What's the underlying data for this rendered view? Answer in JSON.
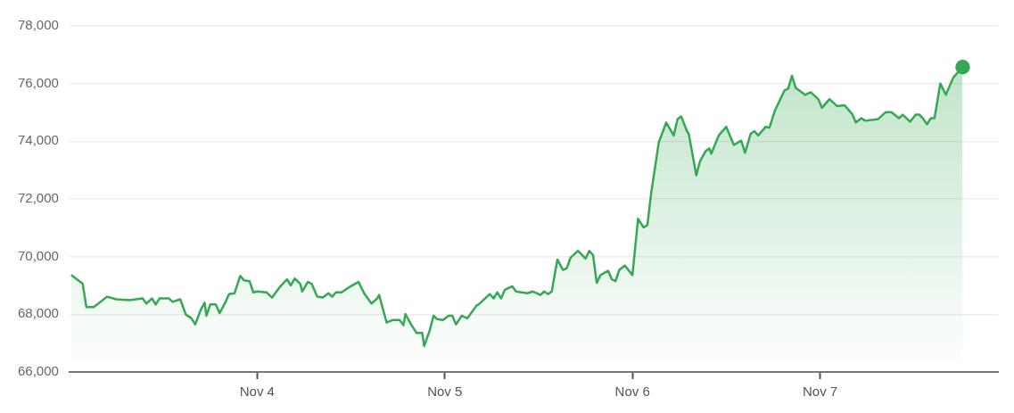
{
  "chart_data": {
    "type": "area",
    "x": [
      "--11-03T00:14",
      "--11-03T01:41",
      "--11-03T02:10",
      "--11-03T03:07",
      "--11-03T04:48",
      "--11-03T06:00",
      "--11-03T07:41",
      "--11-03T09:22",
      "--11-03T09:50",
      "--11-03T10:34",
      "--11-03T11:02",
      "--11-03T11:31",
      "--11-03T12:43",
      "--11-03T13:12",
      "--11-03T14:10",
      "--11-03T14:53",
      "--11-03T15:36",
      "--11-03T16:05",
      "--11-03T16:48",
      "--11-03T17:17",
      "--11-03T17:31",
      "--11-03T18:00",
      "--11-03T18:43",
      "--11-03T19:12",
      "--11-03T19:55",
      "--11-03T20:24",
      "--11-03T21:07",
      "--11-03T21:50",
      "--11-03T22:19",
      "--11-03T23:02",
      "--11-03T23:31",
      "--11-04T00:00",
      "--11-04T01:12",
      "--11-04T01:55",
      "--11-04T02:53",
      "--11-04T03:50",
      "--11-04T04:19",
      "--11-04T04:48",
      "--11-04T05:31",
      "--11-04T05:46",
      "--11-04T06:29",
      "--11-04T06:58",
      "--11-04T07:41",
      "--11-04T08:24",
      "--11-04T09:07",
      "--11-04T09:36",
      "--11-04T10:05",
      "--11-04T10:48",
      "--11-04T11:46",
      "--11-04T12:58",
      "--11-04T13:41",
      "--11-04T14:38",
      "--11-04T15:22",
      "--11-04T15:36",
      "--11-04T16:34",
      "--11-04T17:17",
      "--11-04T18:14",
      "--11-04T18:43",
      "--11-04T18:58",
      "--11-04T19:41",
      "--11-04T20:24",
      "--11-04T21:07",
      "--11-04T21:22",
      "--11-04T22:05",
      "--11-04T22:34",
      "--11-04T23:02",
      "--11-04T23:46",
      "--11-05T00:29",
      "--11-05T00:58",
      "--11-05T01:26",
      "--11-05T02:10",
      "--11-05T02:53",
      "--11-05T04:05",
      "--11-05T04:19",
      "--11-05T05:46",
      "--11-05T06:14",
      "--11-05T06:43",
      "--11-05T07:12",
      "--11-05T07:41",
      "--11-05T08:38",
      "--11-05T09:07",
      "--11-05T10:34",
      "--11-05T11:17",
      "--11-05T12:14",
      "--11-05T12:43",
      "--11-05T13:12",
      "--11-05T13:41",
      "--11-05T14:24",
      "--11-05T15:07",
      "--11-05T15:36",
      "--11-05T16:05",
      "--11-05T17:02",
      "--11-05T18:00",
      "--11-05T18:29",
      "--11-05T18:58",
      "--11-05T19:26",
      "--11-05T19:55",
      "--11-05T20:53",
      "--11-05T21:22",
      "--11-05T21:50",
      "--11-05T22:19",
      "--11-05T23:02",
      "--11-06T00:00",
      "--11-06T00:43",
      "--11-06T01:26",
      "--11-06T01:55",
      "--11-06T02:24",
      "--11-06T03:22",
      "--11-06T04:19",
      "--11-06T05:17",
      "--11-06T05:46",
      "--11-06T06:14",
      "--11-06T06:58",
      "--11-06T07:12",
      "--11-06T08:10",
      "--11-06T08:38",
      "--11-06T09:22",
      "--11-06T09:50",
      "--11-06T10:05",
      "--11-06T11:02",
      "--11-06T12:00",
      "--11-06T12:58",
      "--11-06T13:55",
      "--11-06T14:24",
      "--11-06T15:07",
      "--11-06T15:36",
      "--11-06T16:05",
      "--11-06T17:02",
      "--11-06T17:31",
      "--11-06T18:14",
      "--11-06T19:26",
      "--11-06T19:55",
      "--11-06T20:24",
      "--11-06T20:53",
      "--11-06T22:05",
      "--11-06T22:48",
      "--11-06T23:46",
      "--11-07T00:14",
      "--11-07T01:12",
      "--11-07T02:10",
      "--11-07T03:07",
      "--11-07T04:05",
      "--11-07T04:34",
      "--11-07T05:17",
      "--11-07T05:46",
      "--11-07T07:26",
      "--11-07T08:24",
      "--11-07T09:07",
      "--11-07T10:05",
      "--11-07T10:34",
      "--11-07T11:31",
      "--11-07T12:14",
      "--11-07T12:43",
      "--11-07T13:12",
      "--11-07T13:41",
      "--11-07T14:10",
      "--11-07T14:38",
      "--11-07T15:22",
      "--11-07T16:05",
      "--11-07T17:02",
      "--11-07T18:14"
    ],
    "series": [
      {
        "color": "#34a853",
        "values": [
          69360,
          69060,
          68250,
          68250,
          68610,
          68520,
          68490,
          68550,
          68370,
          68550,
          68340,
          68550,
          68550,
          68430,
          68520,
          67990,
          67860,
          67650,
          68160,
          68400,
          67950,
          68340,
          68340,
          68040,
          68400,
          68700,
          68730,
          69330,
          69180,
          69150,
          68760,
          68790,
          68760,
          68580,
          68940,
          69210,
          69000,
          69240,
          69060,
          68790,
          69120,
          69060,
          68610,
          68580,
          68730,
          68610,
          68760,
          68760,
          68940,
          69120,
          68730,
          68370,
          68550,
          68670,
          67710,
          67800,
          67800,
          67620,
          68010,
          67650,
          67350,
          67350,
          66900,
          67450,
          67950,
          67830,
          67800,
          67950,
          67950,
          67650,
          67950,
          67860,
          68310,
          68340,
          68700,
          68550,
          68760,
          68550,
          68850,
          68970,
          68790,
          68730,
          68790,
          68670,
          68790,
          68700,
          68790,
          69900,
          69540,
          69600,
          69960,
          70200,
          69930,
          70200,
          70050,
          69090,
          69360,
          69510,
          69210,
          69150,
          69540,
          69690,
          69360,
          71310,
          71010,
          71100,
          72210,
          73960,
          74650,
          74200,
          74770,
          74860,
          74350,
          74260,
          72820,
          73300,
          73660,
          73750,
          73570,
          74200,
          74500,
          73870,
          74020,
          73600,
          74260,
          74350,
          74200,
          74500,
          74470,
          75070,
          75760,
          75820,
          76270,
          75850,
          75610,
          75700,
          75460,
          75160,
          75460,
          75220,
          75250,
          74950,
          74650,
          74800,
          74710,
          74770,
          75010,
          75010,
          74800,
          74920,
          74680,
          74920,
          74920,
          74770,
          74590,
          74800,
          74800,
          76000,
          75610,
          76210,
          76570
        ]
      },
      {
        "type": "scatter",
        "color": "#34a853",
        "x": [
          "--11-07T18:14"
        ],
        "values": [
          76570
        ],
        "marker": "circle"
      }
    ],
    "xlim": [
      "--11-03T00:00",
      "--11-07T22:48"
    ],
    "xticks": [
      {
        "value": "--11-04",
        "label": "Nov 4"
      },
      {
        "value": "--11-05",
        "label": "Nov 5"
      },
      {
        "value": "--11-06",
        "label": "Nov 6"
      },
      {
        "value": "--11-07",
        "label": "Nov 7"
      }
    ],
    "ylim": [
      66000,
      78000
    ],
    "yticks": [
      {
        "value": 66000,
        "label": "66,000"
      },
      {
        "value": 68000,
        "label": "68,000"
      },
      {
        "value": 70000,
        "label": "70,000"
      },
      {
        "value": 72000,
        "label": "72,000"
      },
      {
        "value": 74000,
        "label": "74,000"
      },
      {
        "value": 76000,
        "label": "76,000"
      },
      {
        "value": 78000,
        "label": "78,000"
      }
    ],
    "grid": "y",
    "legend": false
  }
}
